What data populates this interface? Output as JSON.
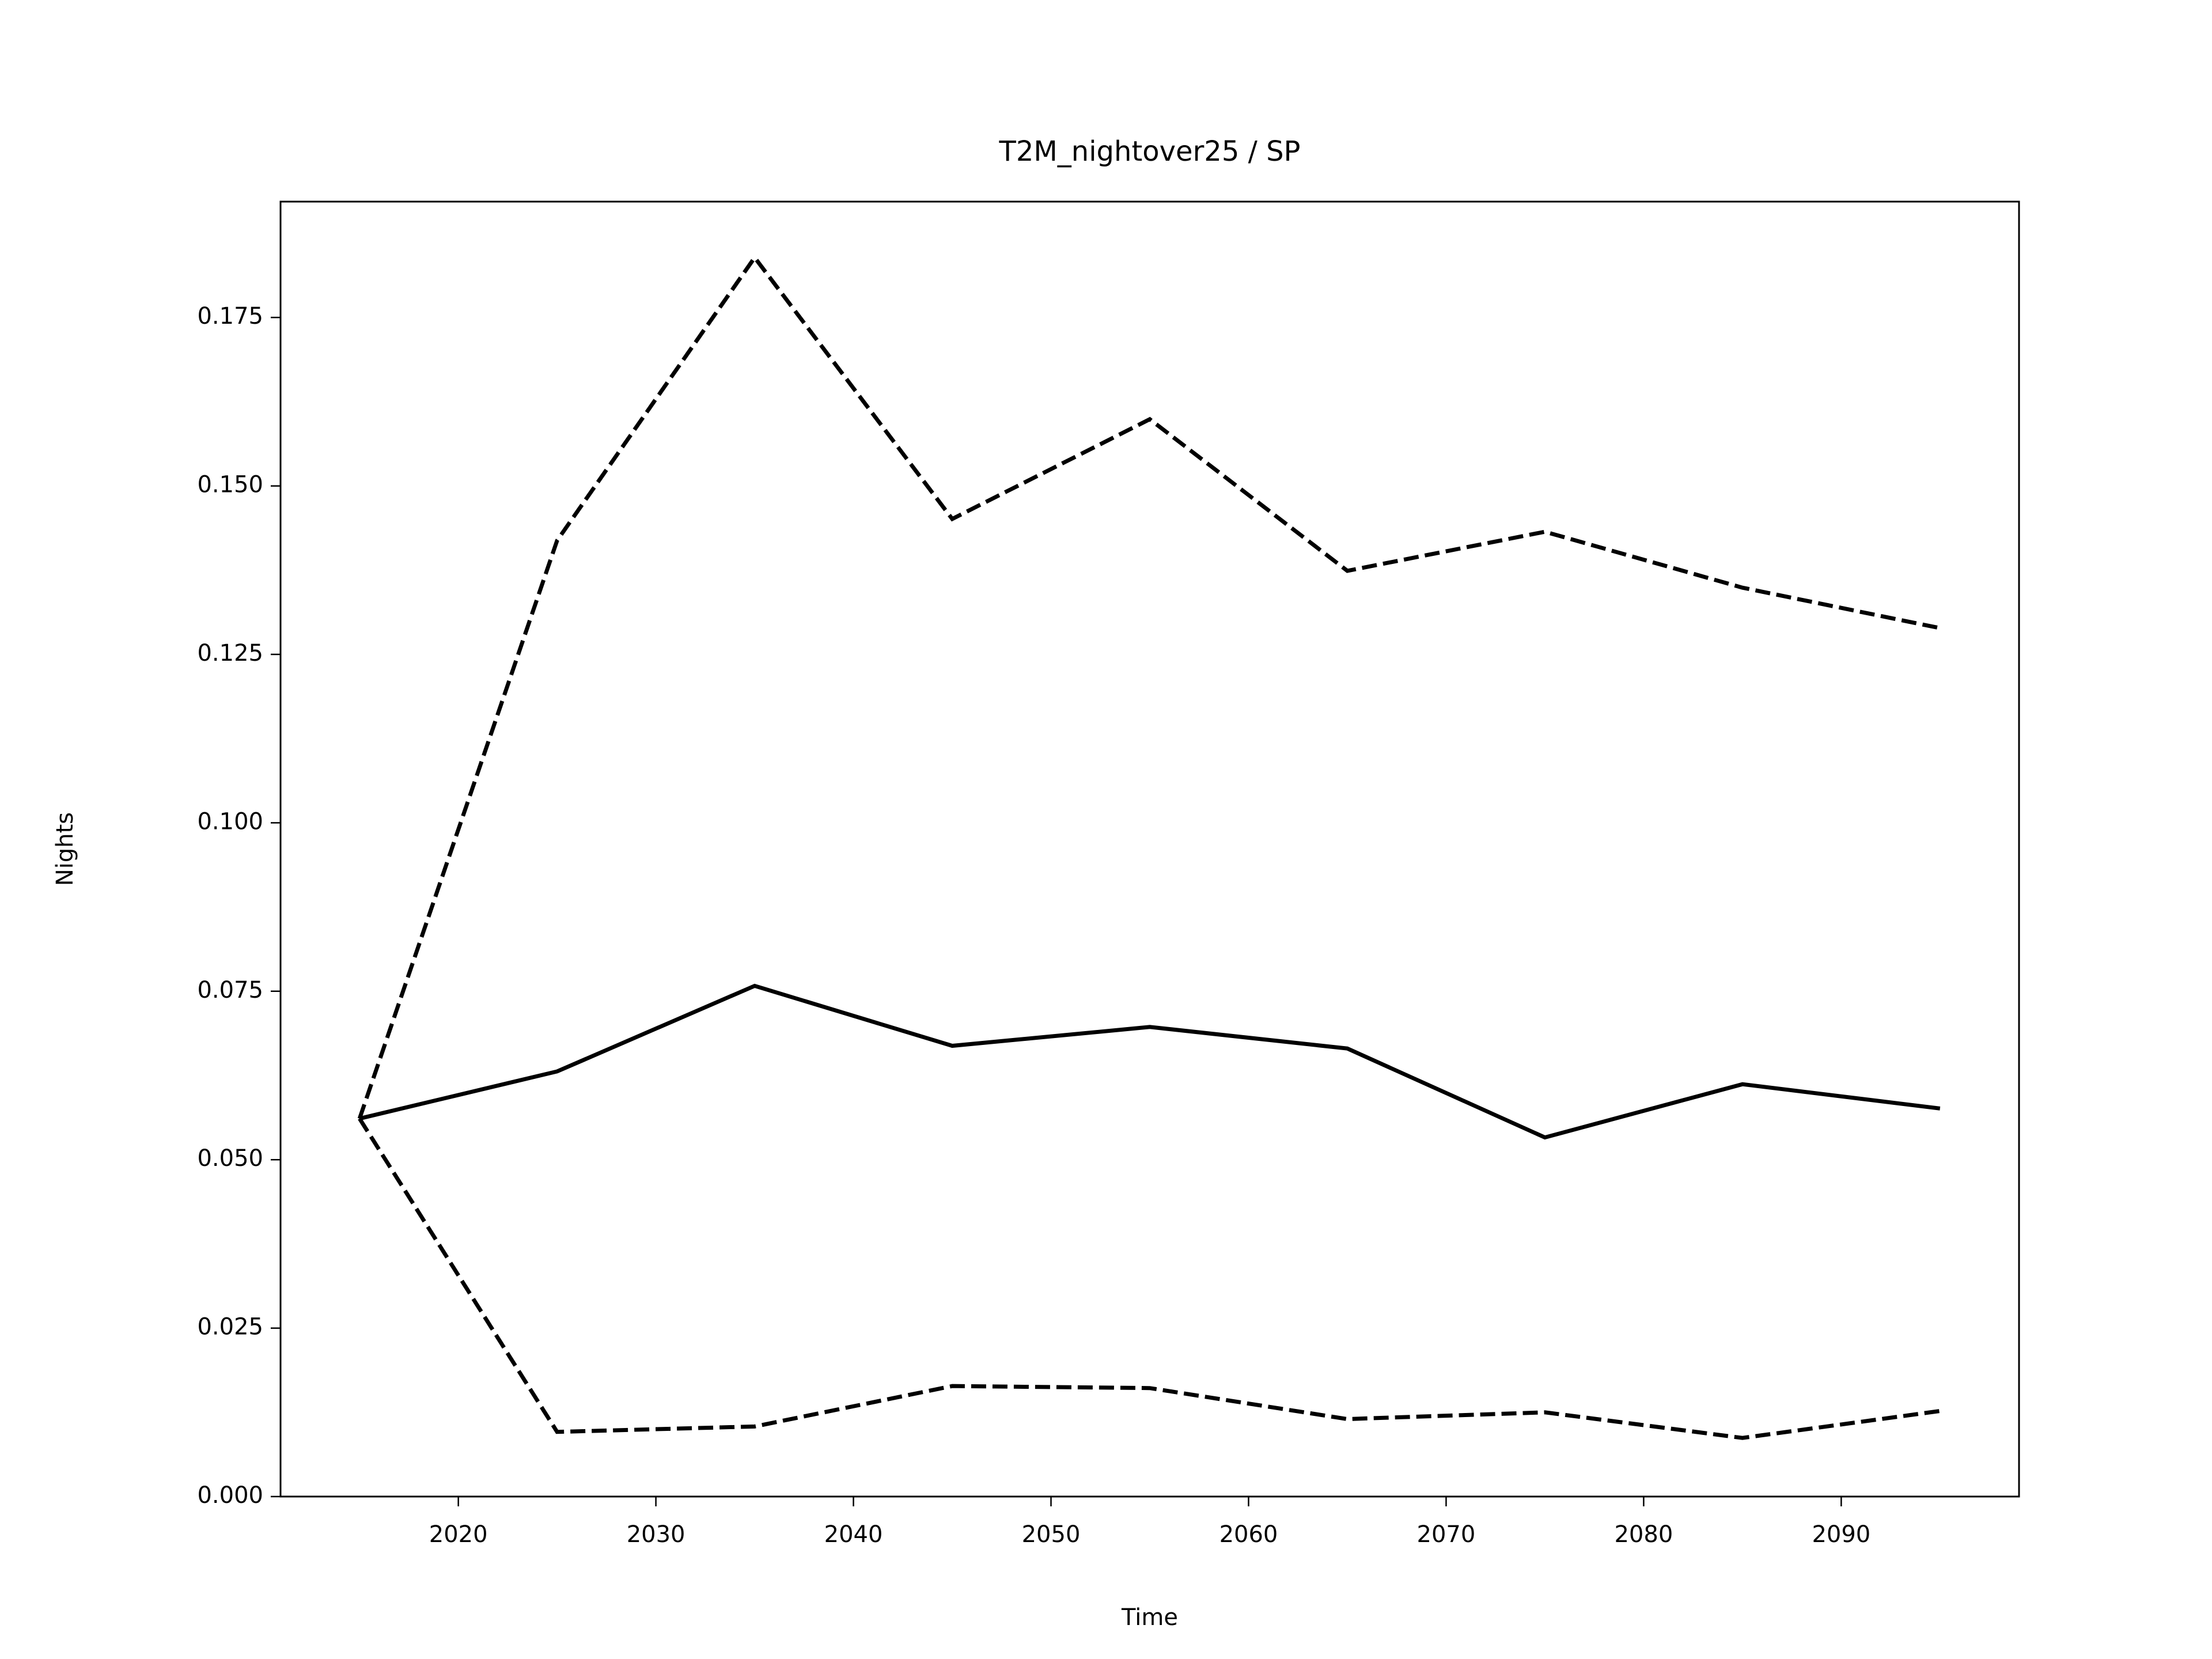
{
  "chart_data": {
    "type": "line",
    "title": "T2M_nightover25 / SP",
    "xlabel": "Time",
    "ylabel": "Nights",
    "x": [
      2015,
      2025,
      2035,
      2045,
      2055,
      2065,
      2075,
      2085,
      2095
    ],
    "series": [
      {
        "color": "#000000",
        "style": "solid",
        "values": [
          0.0561,
          0.0631,
          0.0758,
          0.0669,
          0.0697,
          0.0665,
          0.0533,
          0.0612,
          0.0576
        ]
      },
      {
        "color": "#000000",
        "style": "dashed",
        "values": [
          0.0561,
          0.1419,
          0.1839,
          0.1451,
          0.1599,
          0.1374,
          0.1432,
          0.1349,
          0.1289
        ]
      },
      {
        "color": "#000000",
        "style": "dashed",
        "values": [
          0.0561,
          0.0096,
          0.0104,
          0.0164,
          0.0161,
          0.0115,
          0.0125,
          0.0087,
          0.0127
        ]
      }
    ],
    "xlim": [
      2011,
      2099
    ],
    "xticks": [
      2020,
      2030,
      2040,
      2050,
      2060,
      2070,
      2080,
      2090
    ],
    "ylim": [
      0,
      0.1922
    ],
    "yticks": [
      {
        "value": 0,
        "label": "0.000"
      },
      {
        "value": 0.025,
        "label": "0.025"
      },
      {
        "value": 0.05,
        "label": "0.050"
      },
      {
        "value": 0.075,
        "label": "0.075"
      },
      {
        "value": 0.1,
        "label": "0.100"
      },
      {
        "value": 0.125,
        "label": "0.125"
      },
      {
        "value": 0.15,
        "label": "0.150"
      },
      {
        "value": 0.175,
        "label": "0.175"
      }
    ],
    "grid": false
  }
}
